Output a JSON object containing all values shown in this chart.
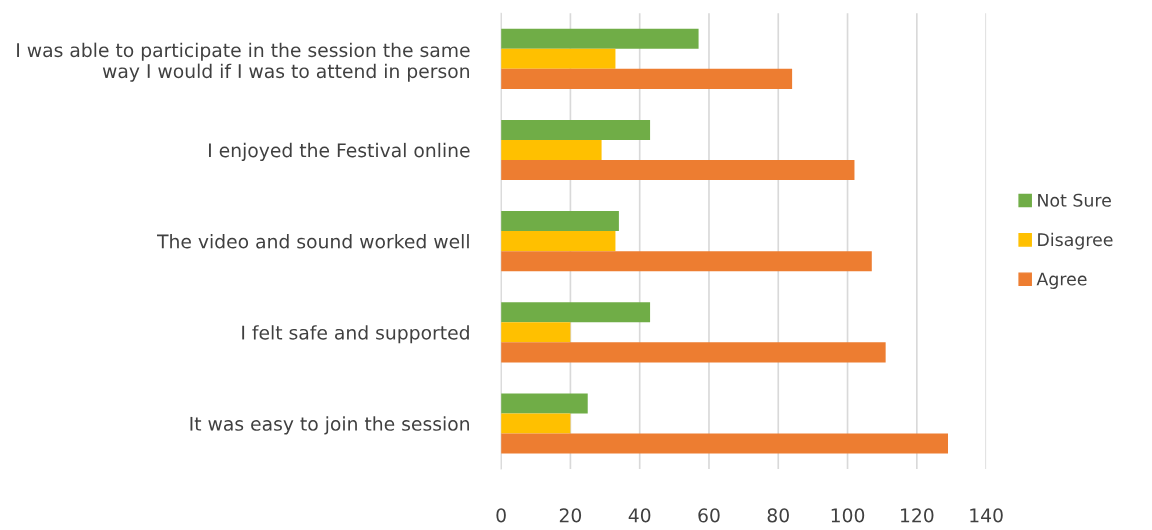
{
  "chart_data": {
    "type": "bar",
    "orientation": "horizontal",
    "categories": [
      "I was able to participate in the session the same\nway I would if I was to attend in person",
      "I enjoyed the Festival online",
      "The video and sound worked well",
      "I felt safe and supported",
      "It was easy to join the session"
    ],
    "series": [
      {
        "name": "Not Sure",
        "color": "#70ad47",
        "values": [
          57,
          43,
          34,
          43,
          25
        ]
      },
      {
        "name": "Disagree",
        "color": "#ffc000",
        "values": [
          33,
          29,
          33,
          20,
          20
        ]
      },
      {
        "name": "Agree",
        "color": "#ed7d31",
        "values": [
          84,
          102,
          107,
          111,
          129
        ]
      }
    ],
    "xlim": [
      0,
      140
    ],
    "xticks": [
      0,
      20,
      40,
      60,
      80,
      100,
      120,
      140
    ],
    "grid": "x",
    "legend": "right"
  }
}
